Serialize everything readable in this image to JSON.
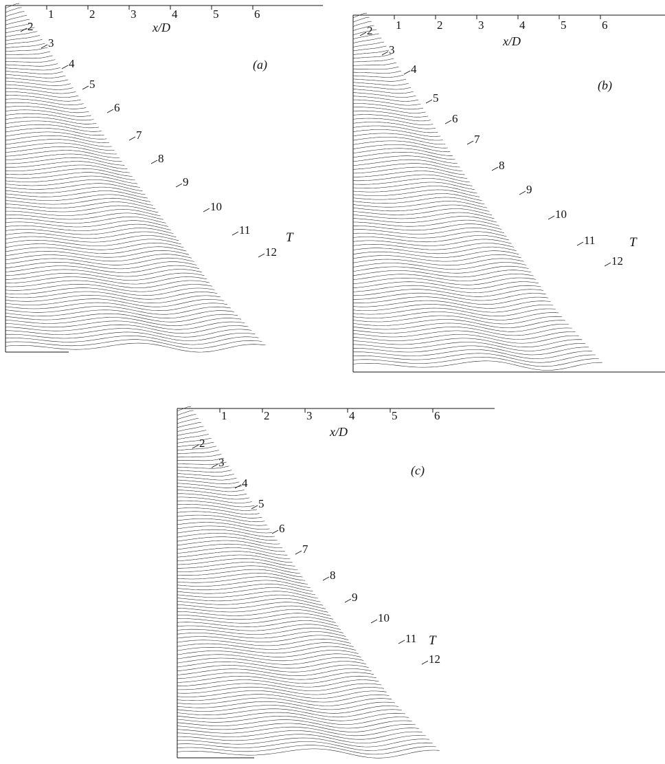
{
  "panels": [
    {
      "id": "a",
      "label": "(a)"
    },
    {
      "id": "b",
      "label": "(b)"
    },
    {
      "id": "c",
      "label": "(c)"
    }
  ],
  "chart_data": [
    {
      "type": "line",
      "panel": "(a)",
      "xlabel": "x/D",
      "x_ticks": [
        "1",
        "2",
        "3",
        "4",
        "5",
        "6"
      ],
      "xlim": [
        0,
        6.7
      ],
      "time_axis_label": "T",
      "time_labels": [
        "2",
        "3",
        "4",
        "5",
        "6",
        "7",
        "8",
        "9",
        "10",
        "11",
        "12"
      ],
      "grid": false
    },
    {
      "type": "line",
      "panel": "(b)",
      "xlabel": "x/D",
      "x_ticks": [
        "1",
        "2",
        "3",
        "4",
        "5",
        "6"
      ],
      "xlim": [
        0,
        6.7
      ],
      "time_axis_label": "T",
      "time_labels": [
        "2",
        "3",
        "4",
        "5",
        "6",
        "7",
        "8",
        "9",
        "10",
        "11",
        "12"
      ],
      "grid": false
    },
    {
      "type": "line",
      "panel": "(c)",
      "xlabel": "x/D",
      "x_ticks": [
        "1",
        "2",
        "3",
        "4",
        "5",
        "6"
      ],
      "xlim": [
        0,
        6.7
      ],
      "time_axis_label": "T",
      "time_labels": [
        "2",
        "3",
        "4",
        "5",
        "6",
        "7",
        "8",
        "9",
        "10",
        "11",
        "12"
      ],
      "grid": false
    }
  ]
}
